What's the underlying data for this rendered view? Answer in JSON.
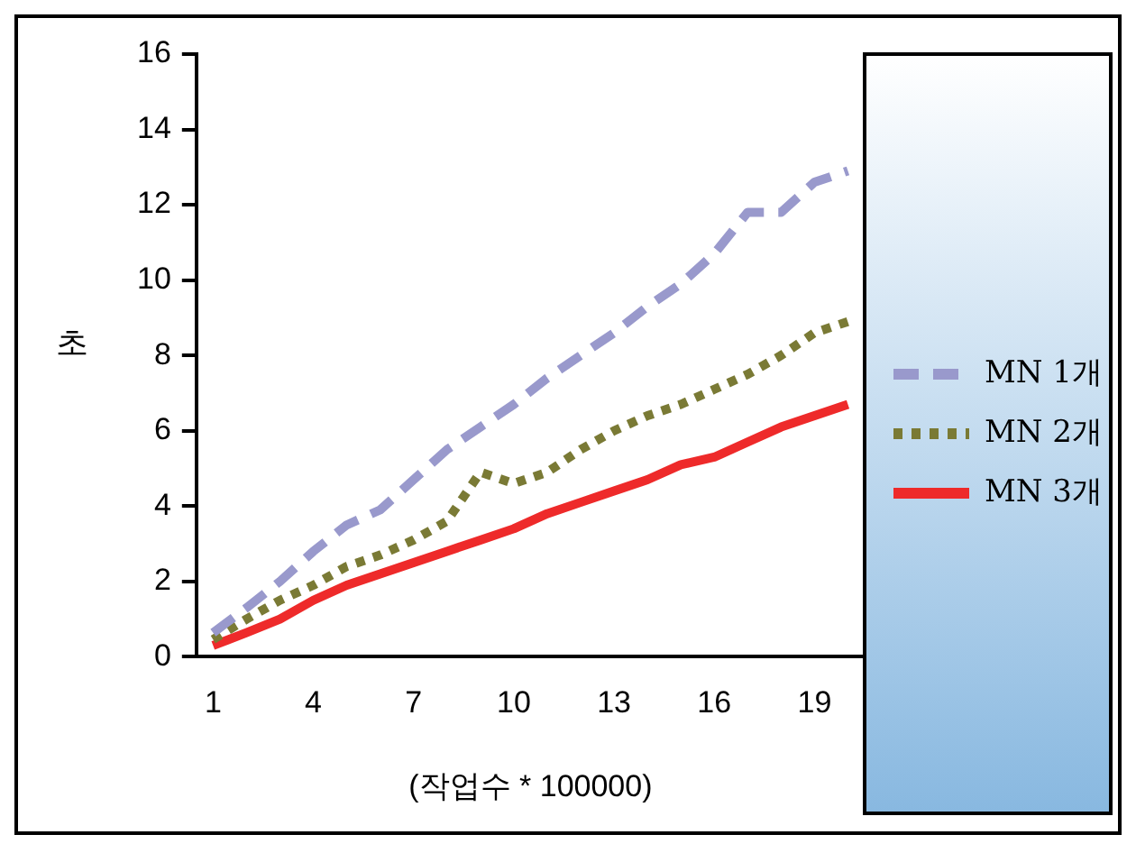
{
  "chart_data": {
    "type": "line",
    "xlabel": "(작업수 * 100000)",
    "ylabel": "초",
    "categories": [
      "1",
      null,
      null,
      "4",
      null,
      null,
      "7",
      null,
      null,
      "10",
      null,
      null,
      "13",
      null,
      null,
      "16",
      null,
      null,
      "19",
      null
    ],
    "series": [
      {
        "name": "MN 1개",
        "color": "#9999cc",
        "line_style": "dashed",
        "values": [
          0.64,
          1.3,
          2.0,
          2.8,
          3.5,
          3.9,
          4.7,
          5.5,
          6.1,
          6.7,
          7.4,
          8.0,
          8.6,
          9.3,
          9.9,
          10.7,
          11.8,
          11.8,
          12.6,
          12.9
        ]
      },
      {
        "name": "MN 2개",
        "color": "#7a7a35",
        "line_style": "dotted",
        "values": [
          0.46,
          1.0,
          1.5,
          1.9,
          2.4,
          2.7,
          3.1,
          3.6,
          4.9,
          4.6,
          4.9,
          5.5,
          6.0,
          6.4,
          6.7,
          7.1,
          7.5,
          8.0,
          8.6,
          8.9
        ]
      },
      {
        "name": "MN 3개",
        "color": "#ee2a2a",
        "line_style": "solid",
        "values": [
          0.3,
          0.64,
          1.0,
          1.5,
          1.9,
          2.2,
          2.5,
          2.8,
          3.1,
          3.4,
          3.8,
          4.1,
          4.4,
          4.7,
          5.1,
          5.3,
          5.7,
          6.1,
          6.4,
          6.7
        ]
      }
    ],
    "ylim": [
      0,
      16
    ],
    "yticks": [
      0,
      2,
      4,
      6,
      8,
      10,
      12,
      14,
      16
    ],
    "legend": "right",
    "marker": "none"
  }
}
